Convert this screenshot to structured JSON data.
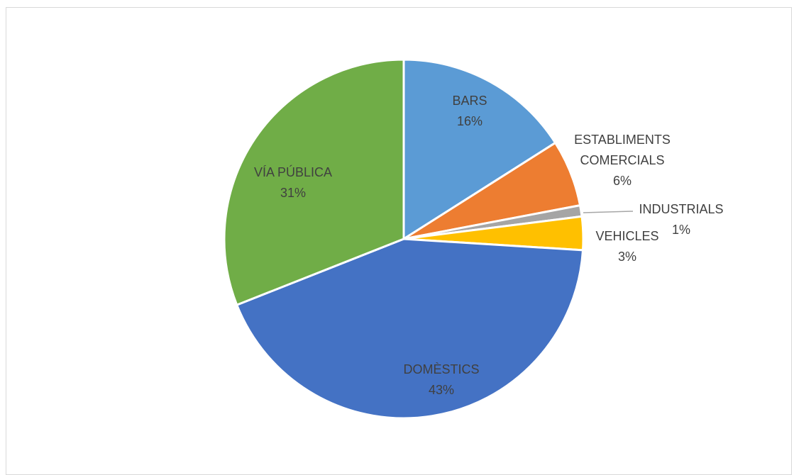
{
  "chart_data": {
    "type": "pie",
    "title": "",
    "slices": [
      {
        "name": "BARS",
        "value": 16,
        "label": "16%",
        "color": "#5B9BD5"
      },
      {
        "name_lines": [
          "ESTABLIMENTS",
          "COMERCIALS"
        ],
        "value": 6,
        "label": "6%",
        "color": "#ED7D31"
      },
      {
        "name": "INDUSTRIALS",
        "value": 1,
        "label": "1%",
        "color": "#A5A5A5"
      },
      {
        "name": "VEHICLES",
        "value": 3,
        "label": "3%",
        "color": "#FFC000"
      },
      {
        "name": "DOMÈSTICS",
        "value": 43,
        "label": "43%",
        "color": "#4472C4"
      },
      {
        "name": "VÍA PÚBLICA",
        "value": 31,
        "label": "31%",
        "color": "#70AD47"
      }
    ]
  }
}
